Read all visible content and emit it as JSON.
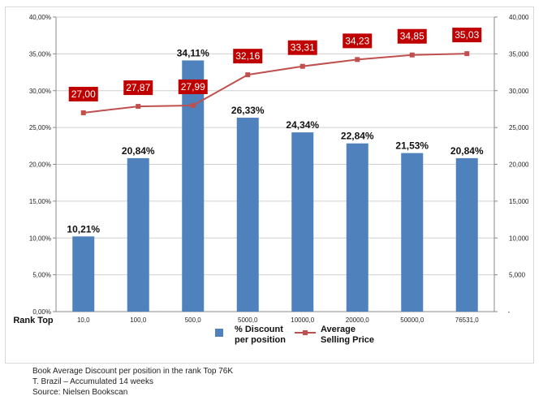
{
  "chart_data": {
    "type": "bar+line",
    "categories": [
      "10,0",
      "100,0",
      "500,0",
      "5000,0",
      "10000,0",
      "20000,0",
      "50000,0",
      "76531,0"
    ],
    "x_axis_title": "Rank Top",
    "series": [
      {
        "name": "% Discount per position",
        "name_lines": [
          "% Discount",
          "per position"
        ],
        "type": "bar",
        "axis": "left",
        "color": "#4f81bd",
        "values": [
          10.21,
          20.84,
          34.11,
          26.33,
          24.34,
          22.84,
          21.53,
          20.84
        ],
        "labels": [
          "10,21%",
          "20,84%",
          "34,11%",
          "26,33%",
          "24,34%",
          "22,84%",
          "21,53%",
          "20,84%"
        ]
      },
      {
        "name": "Average Selling Price",
        "name_lines": [
          "Average",
          "Selling Price"
        ],
        "type": "line",
        "axis": "right",
        "color": "#c0504d",
        "label_bg": "#c00000",
        "values": [
          27.0,
          27.87,
          27.99,
          32.16,
          33.31,
          34.23,
          34.85,
          35.03
        ],
        "labels": [
          "27,00",
          "27,87",
          "27,99",
          "32,16",
          "33,31",
          "34,23",
          "34,85",
          "35,03"
        ]
      }
    ],
    "y_left": {
      "range": [
        0,
        40
      ],
      "ticks": [
        "0,00%",
        "5,00%",
        "10,00%",
        "15,00%",
        "20,00%",
        "25,00%",
        "30,00%",
        "35,00%",
        "40,00%"
      ]
    },
    "y_right": {
      "range": [
        0,
        40
      ],
      "ticks": [
        "-",
        "5,000",
        "10,000",
        "15,000",
        "20,000",
        "25,000",
        "30,000",
        "35,000",
        "40,000"
      ]
    },
    "grid": "horizontal",
    "legend_position": "bottom"
  },
  "caption": {
    "line1": "Book Average Discount per position in the rank Top 76K",
    "line2": "T. Brazil – Accumulated 14 weeks",
    "line3": "Source: Nielsen Bookscan"
  }
}
